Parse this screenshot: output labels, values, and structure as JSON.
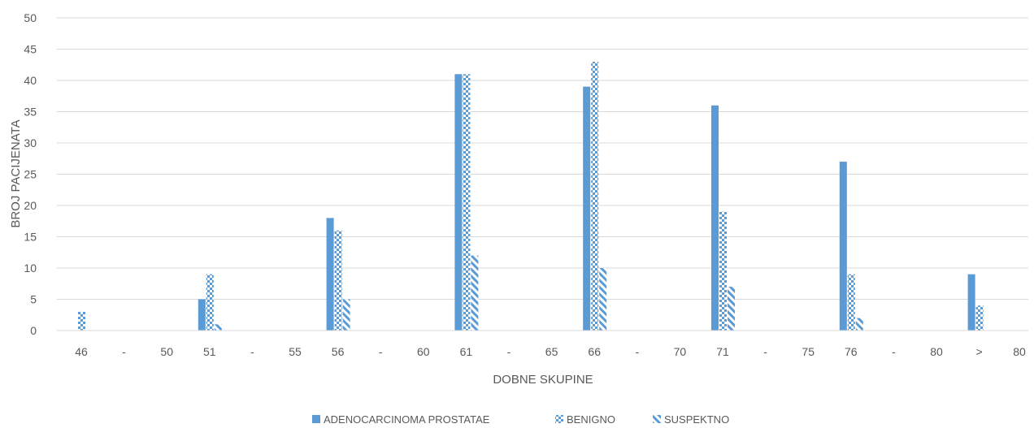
{
  "chart_data": {
    "type": "bar",
    "title": "",
    "xlabel": "DOBNE SKUPINE",
    "ylabel": "BROJ PACIJENATA",
    "ylim": [
      0,
      50
    ],
    "yticks": [
      0,
      5,
      10,
      15,
      20,
      25,
      30,
      35,
      40,
      45,
      50
    ],
    "grid": true,
    "legend_position": "bottom",
    "categories": [
      "46 - 50",
      "51 - 55",
      "56 - 60",
      "61 - 65",
      "66 - 70",
      "71 - 75",
      "76 - 80",
      "> 80"
    ],
    "category_tick_labels": [
      [
        "46",
        "-",
        "50"
      ],
      [
        "51",
        "-",
        "55"
      ],
      [
        "56",
        "-",
        "60"
      ],
      [
        "61",
        "-",
        "65"
      ],
      [
        "66",
        "-",
        "70"
      ],
      [
        "71",
        "-",
        "75"
      ],
      [
        "76",
        "-",
        "80"
      ],
      [
        ">",
        "80"
      ]
    ],
    "series": [
      {
        "name": "ADENOCARCINOMA PROSTATAE",
        "values": [
          0,
          5,
          18,
          41,
          39,
          36,
          27,
          9
        ],
        "color": "#5b9bd5",
        "pattern": "solid"
      },
      {
        "name": "BENIGNO",
        "values": [
          3,
          9,
          16,
          41,
          43,
          19,
          9,
          4
        ],
        "color": "#5b9bd5",
        "pattern": "checker"
      },
      {
        "name": "SUSPEKTNO",
        "values": [
          0,
          1,
          5,
          12,
          10,
          7,
          2,
          0
        ],
        "color": "#5b9bd5",
        "pattern": "diagonal"
      }
    ]
  }
}
